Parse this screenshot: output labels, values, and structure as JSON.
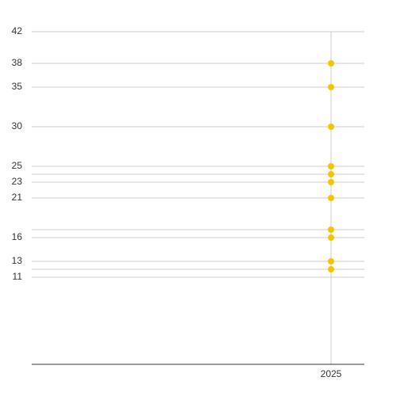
{
  "chart_data": {
    "type": "scatter",
    "x": [
      2025,
      2025,
      2025,
      2025,
      2025,
      2025,
      2025,
      2025,
      2025,
      2025,
      2025
    ],
    "values": [
      38,
      35,
      30,
      25,
      24,
      23,
      21,
      17,
      16,
      13,
      12
    ],
    "color": "#f5c400",
    "xlim": [
      2016,
      2026
    ],
    "xticks": [
      2025
    ],
    "ylim": [
      0,
      42
    ],
    "yticks": [
      42,
      38,
      35,
      30,
      25,
      23,
      21,
      16,
      13,
      11
    ],
    "grid": true
  }
}
